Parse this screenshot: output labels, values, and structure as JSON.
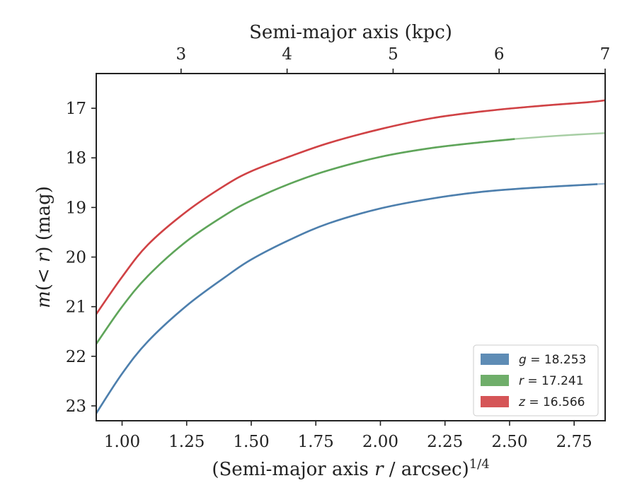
{
  "chart_data": {
    "type": "line",
    "xlabel_prefix": "(Semi-major axis ",
    "xlabel_var": "r",
    "xlabel_suffix": " / arcsec)",
    "xlabel_sup": "1/4",
    "ylabel_var": "m",
    "ylabel_mid": "(< ",
    "ylabel_var2": "r",
    "ylabel_suffix": ") (mag)",
    "top_xlabel": "Semi-major axis (kpc)",
    "xlim": [
      0.9,
      2.87
    ],
    "ylim": [
      23.3,
      16.3
    ],
    "y_inverted": true,
    "top_xlim_kpc": [
      2.2,
      7.0
    ],
    "x_ticks": [
      "1.00",
      "1.25",
      "1.50",
      "1.75",
      "2.00",
      "2.25",
      "2.50",
      "2.75"
    ],
    "x_tick_values": [
      1.0,
      1.25,
      1.5,
      1.75,
      2.0,
      2.25,
      2.5,
      2.75
    ],
    "y_ticks": [
      "17",
      "18",
      "19",
      "20",
      "21",
      "22",
      "23"
    ],
    "y_tick_values": [
      17,
      18,
      19,
      20,
      21,
      22,
      23
    ],
    "top_ticks": [
      "3",
      "4",
      "5",
      "6",
      "7"
    ],
    "top_tick_values_kpc": [
      3,
      4,
      5,
      6,
      7
    ],
    "legend_position": "lower-right",
    "series": [
      {
        "name": "g",
        "legend_value": " = 18.253",
        "color": "#4d7fad",
        "data_end": 2.84,
        "x": [
          0.9,
          1.0,
          1.1,
          1.25,
          1.4,
          1.5,
          1.65,
          1.8,
          2.0,
          2.2,
          2.4,
          2.6,
          2.84,
          2.87
        ],
        "y": [
          23.15,
          22.35,
          21.7,
          20.98,
          20.4,
          20.05,
          19.65,
          19.32,
          19.02,
          18.82,
          18.68,
          18.6,
          18.53,
          18.52
        ]
      },
      {
        "name": "r",
        "legend_value": " = 17.241",
        "color": "#5fa55a",
        "data_end": 2.52,
        "x": [
          0.9,
          1.0,
          1.1,
          1.25,
          1.4,
          1.5,
          1.65,
          1.8,
          2.0,
          2.2,
          2.4,
          2.52,
          2.7,
          2.87
        ],
        "y": [
          21.75,
          21.0,
          20.38,
          19.68,
          19.15,
          18.86,
          18.52,
          18.25,
          17.98,
          17.8,
          17.68,
          17.62,
          17.55,
          17.5
        ]
      },
      {
        "name": "z",
        "legend_value": " = 16.566",
        "color": "#d04245",
        "data_end": 2.87,
        "x": [
          0.9,
          1.0,
          1.1,
          1.25,
          1.4,
          1.5,
          1.65,
          1.8,
          2.0,
          2.2,
          2.4,
          2.6,
          2.8,
          2.87
        ],
        "y": [
          21.15,
          20.4,
          19.75,
          19.08,
          18.55,
          18.27,
          17.97,
          17.7,
          17.42,
          17.2,
          17.06,
          16.96,
          16.88,
          16.84
        ]
      }
    ]
  }
}
